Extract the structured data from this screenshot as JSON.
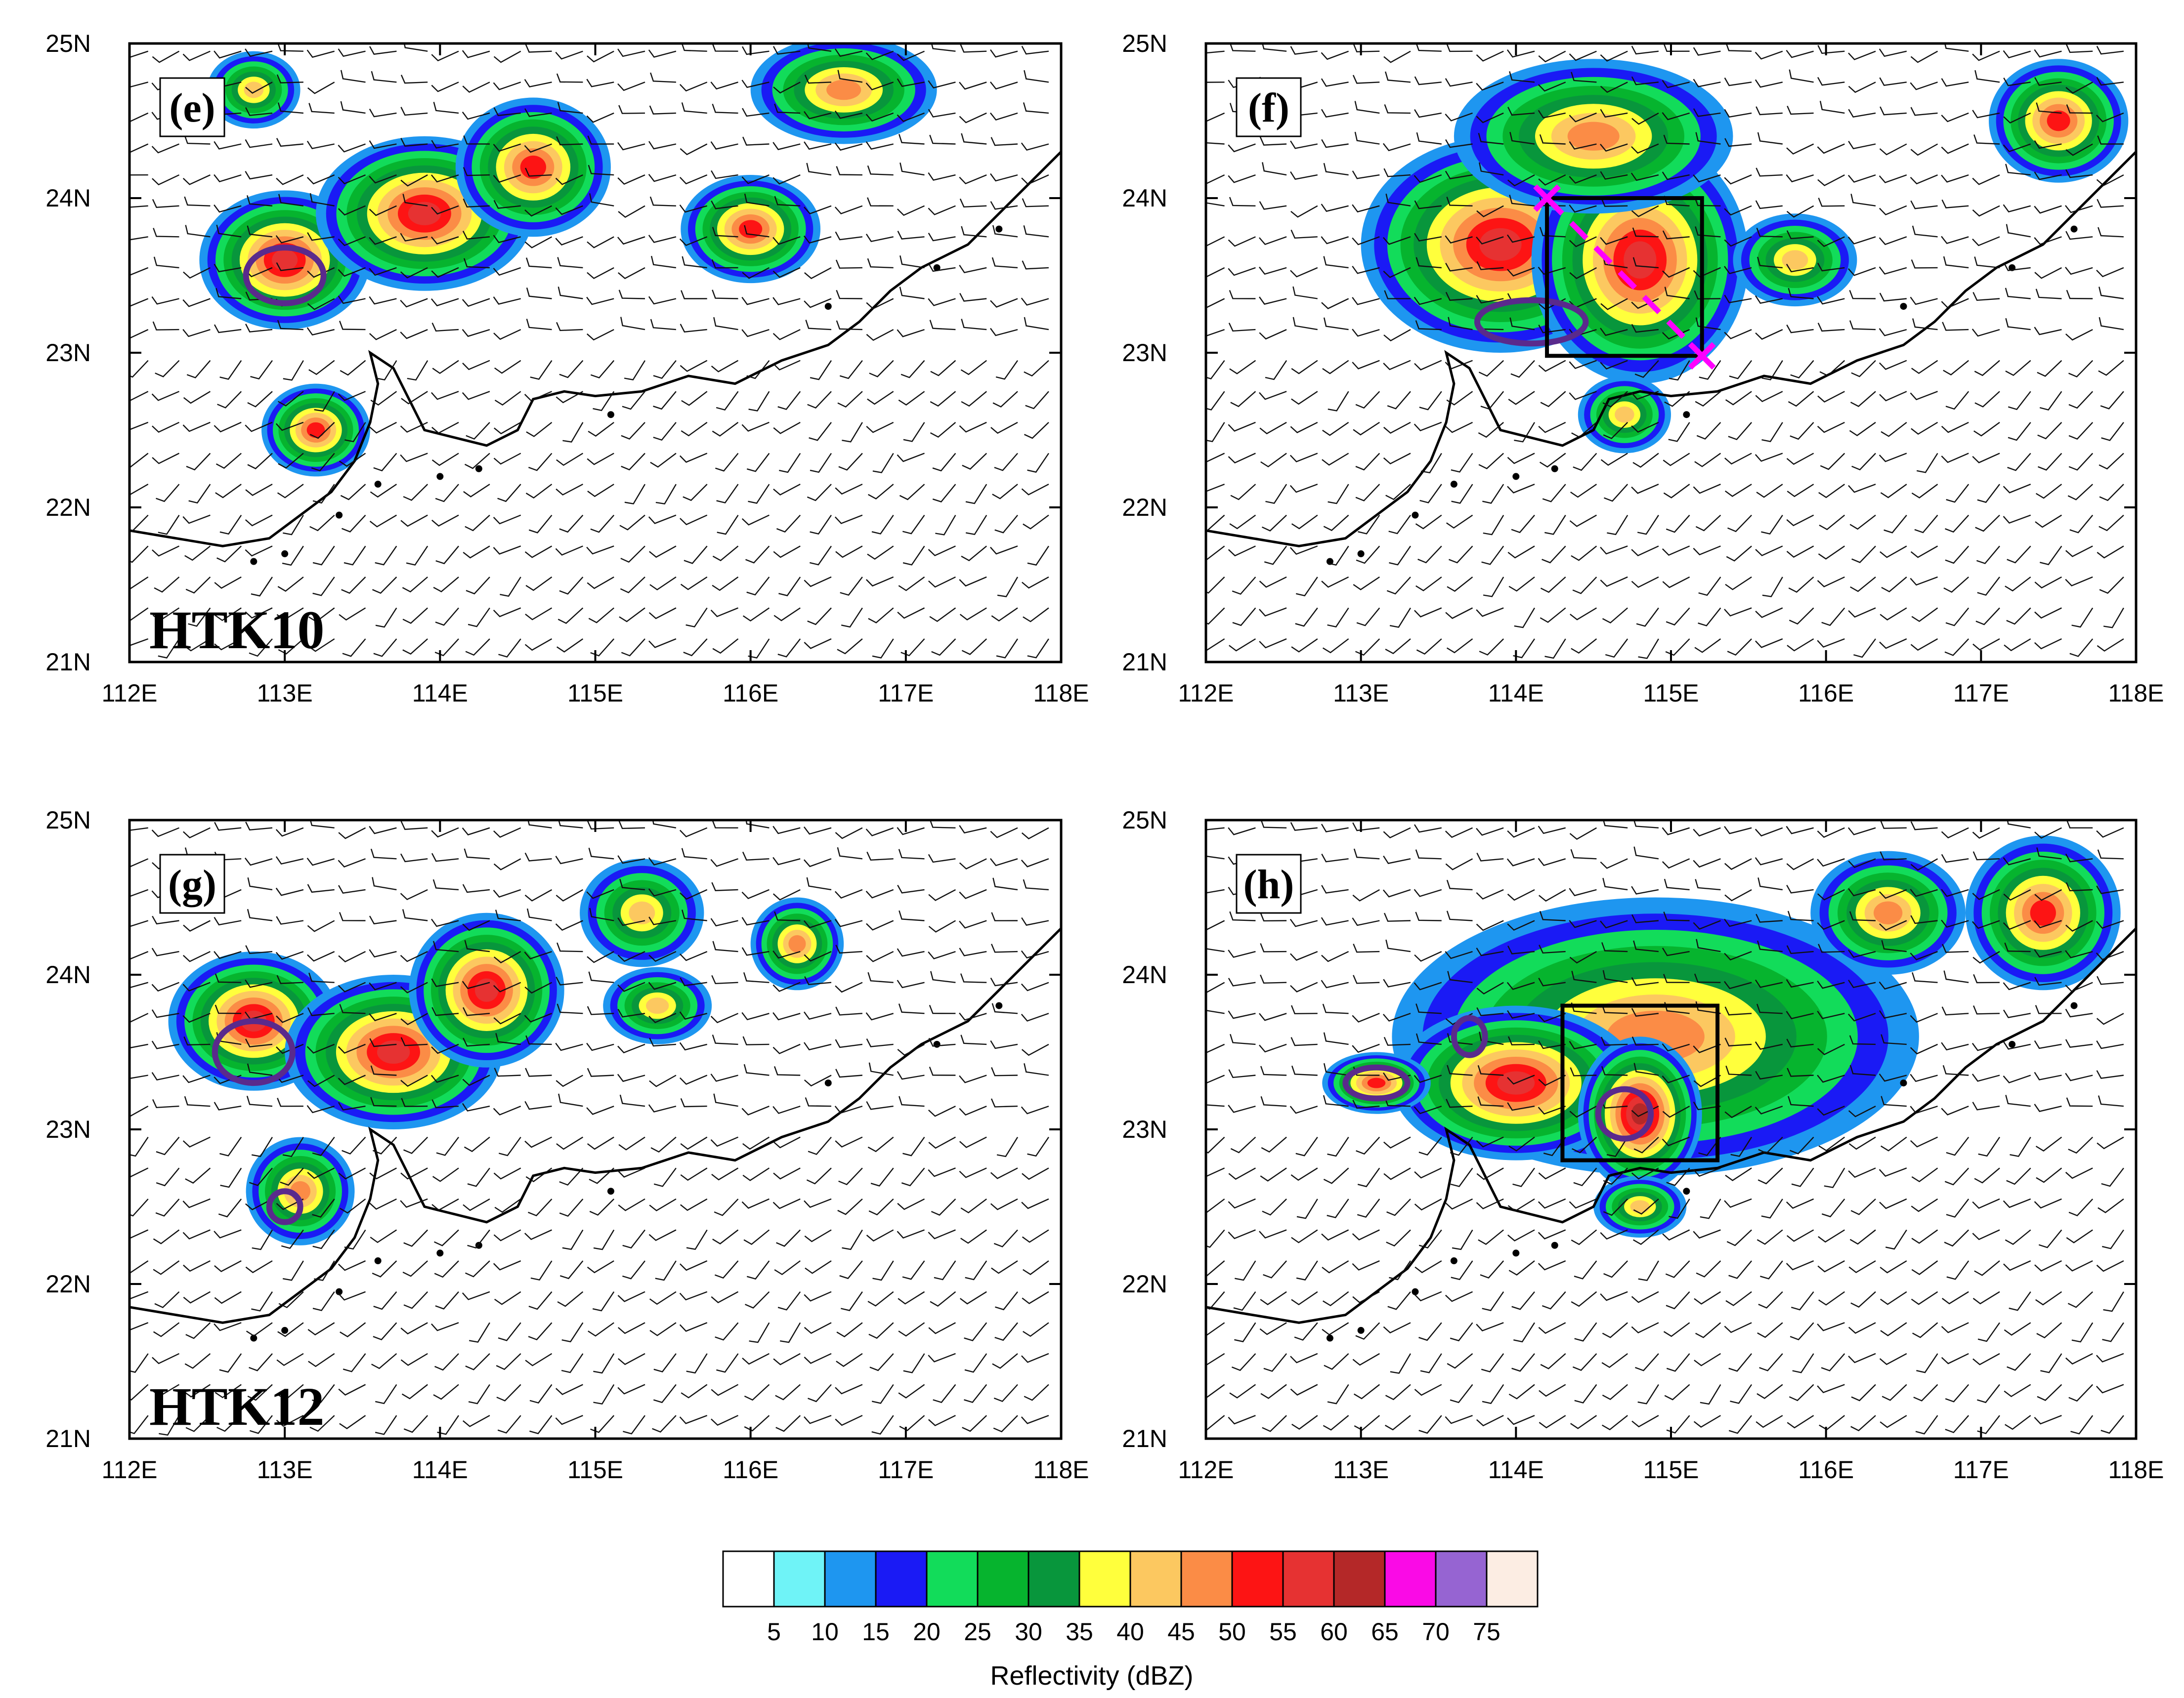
{
  "panels": [
    {
      "label": "(e)",
      "run_label": "HTK10",
      "box": null,
      "cross_section": false,
      "cells": [
        {
          "lon": 113.0,
          "lat": 23.6,
          "rx": 0.55,
          "ry": 0.45,
          "peak": 55
        },
        {
          "lon": 113.9,
          "lat": 23.9,
          "rx": 0.7,
          "ry": 0.5,
          "peak": 55
        },
        {
          "lon": 114.6,
          "lat": 24.2,
          "rx": 0.5,
          "ry": 0.45,
          "peak": 50
        },
        {
          "lon": 113.2,
          "lat": 22.5,
          "rx": 0.35,
          "ry": 0.3,
          "peak": 50
        },
        {
          "lon": 116.0,
          "lat": 23.8,
          "rx": 0.45,
          "ry": 0.35,
          "peak": 50
        },
        {
          "lon": 116.6,
          "lat": 24.7,
          "rx": 0.6,
          "ry": 0.35,
          "peak": 45
        },
        {
          "lon": 112.8,
          "lat": 24.7,
          "rx": 0.3,
          "ry": 0.25,
          "peak": 40
        }
      ],
      "contours": [
        {
          "lon": 113.0,
          "lat": 23.5,
          "rx": 0.25,
          "ry": 0.18
        }
      ]
    },
    {
      "label": "(f)",
      "run_label": "",
      "box": {
        "lon": [
          114.2,
          115.2
        ],
        "lat": [
          22.98,
          24.0
        ]
      },
      "cross_section": true,
      "cells": [
        {
          "lon": 113.9,
          "lat": 23.7,
          "rx": 0.9,
          "ry": 0.7,
          "peak": 55
        },
        {
          "lon": 114.8,
          "lat": 23.6,
          "rx": 0.7,
          "ry": 0.8,
          "peak": 55
        },
        {
          "lon": 114.5,
          "lat": 24.4,
          "rx": 0.9,
          "ry": 0.5,
          "peak": 45
        },
        {
          "lon": 117.5,
          "lat": 24.5,
          "rx": 0.45,
          "ry": 0.4,
          "peak": 50
        },
        {
          "lon": 115.8,
          "lat": 23.6,
          "rx": 0.4,
          "ry": 0.3,
          "peak": 40
        },
        {
          "lon": 114.7,
          "lat": 22.6,
          "rx": 0.3,
          "ry": 0.25,
          "peak": 40
        }
      ],
      "contours": [
        {
          "lon": 114.1,
          "lat": 23.2,
          "rx": 0.35,
          "ry": 0.14
        }
      ]
    },
    {
      "label": "(g)",
      "run_label": "HTK12",
      "box": null,
      "cross_section": false,
      "cells": [
        {
          "lon": 112.8,
          "lat": 23.7,
          "rx": 0.55,
          "ry": 0.45,
          "peak": 55
        },
        {
          "lon": 113.7,
          "lat": 23.5,
          "rx": 0.7,
          "ry": 0.5,
          "peak": 55
        },
        {
          "lon": 114.3,
          "lat": 23.9,
          "rx": 0.5,
          "ry": 0.5,
          "peak": 55
        },
        {
          "lon": 113.1,
          "lat": 22.6,
          "rx": 0.35,
          "ry": 0.35,
          "peak": 45
        },
        {
          "lon": 115.3,
          "lat": 24.4,
          "rx": 0.4,
          "ry": 0.35,
          "peak": 40
        },
        {
          "lon": 115.4,
          "lat": 23.8,
          "rx": 0.35,
          "ry": 0.25,
          "peak": 40
        },
        {
          "lon": 116.3,
          "lat": 24.2,
          "rx": 0.3,
          "ry": 0.3,
          "peak": 45
        }
      ],
      "contours": [
        {
          "lon": 112.8,
          "lat": 23.5,
          "rx": 0.25,
          "ry": 0.2
        },
        {
          "lon": 113.0,
          "lat": 22.5,
          "rx": 0.1,
          "ry": 0.1
        }
      ]
    },
    {
      "label": "(h)",
      "run_label": "",
      "box": {
        "lon": [
          114.3,
          115.3
        ],
        "lat": [
          22.8,
          23.8
        ]
      },
      "cross_section": false,
      "cells": [
        {
          "lon": 114.9,
          "lat": 23.6,
          "rx": 1.7,
          "ry": 0.9,
          "peak": 45
        },
        {
          "lon": 114.0,
          "lat": 23.3,
          "rx": 0.8,
          "ry": 0.5,
          "peak": 55
        },
        {
          "lon": 114.8,
          "lat": 23.1,
          "rx": 0.4,
          "ry": 0.5,
          "peak": 60
        },
        {
          "lon": 117.4,
          "lat": 24.4,
          "rx": 0.5,
          "ry": 0.5,
          "peak": 50
        },
        {
          "lon": 116.4,
          "lat": 24.4,
          "rx": 0.5,
          "ry": 0.4,
          "peak": 45
        },
        {
          "lon": 113.1,
          "lat": 23.3,
          "rx": 0.35,
          "ry": 0.2,
          "peak": 50
        },
        {
          "lon": 114.8,
          "lat": 22.5,
          "rx": 0.3,
          "ry": 0.2,
          "peak": 40
        }
      ],
      "contours": [
        {
          "lon": 113.1,
          "lat": 23.3,
          "rx": 0.2,
          "ry": 0.1
        },
        {
          "lon": 113.7,
          "lat": 23.6,
          "rx": 0.1,
          "ry": 0.12
        },
        {
          "lon": 114.7,
          "lat": 23.1,
          "rx": 0.17,
          "ry": 0.16
        }
      ]
    }
  ],
  "axes": {
    "lon_ticks": [
      "112E",
      "113E",
      "114E",
      "115E",
      "116E",
      "117E",
      "118E"
    ],
    "lat_ticks": [
      "25N",
      "24N",
      "23N",
      "22N",
      "21N"
    ],
    "lon_range": [
      112,
      118
    ],
    "lat_range": [
      21,
      25
    ]
  },
  "colorbar": {
    "title": "Reflectivity (dBZ)",
    "tick_labels": [
      "5",
      "10",
      "15",
      "20",
      "25",
      "30",
      "35",
      "40",
      "45",
      "50",
      "55",
      "60",
      "65",
      "70",
      "75"
    ],
    "colors": [
      "#ffffff",
      "#6ff3f7",
      "#1e96f0",
      "#1a1af5",
      "#12dc5a",
      "#06b42e",
      "#08963c",
      "#ffff3c",
      "#fcc860",
      "#fb8c46",
      "#fd1414",
      "#e63232",
      "#b42828",
      "#fa0ae6",
      "#9664d2",
      "#fcede3"
    ]
  },
  "styles": {
    "coast_color": "#000000",
    "contour_color": "#5a2a8c",
    "cross_section_color": "#ff00ff"
  }
}
